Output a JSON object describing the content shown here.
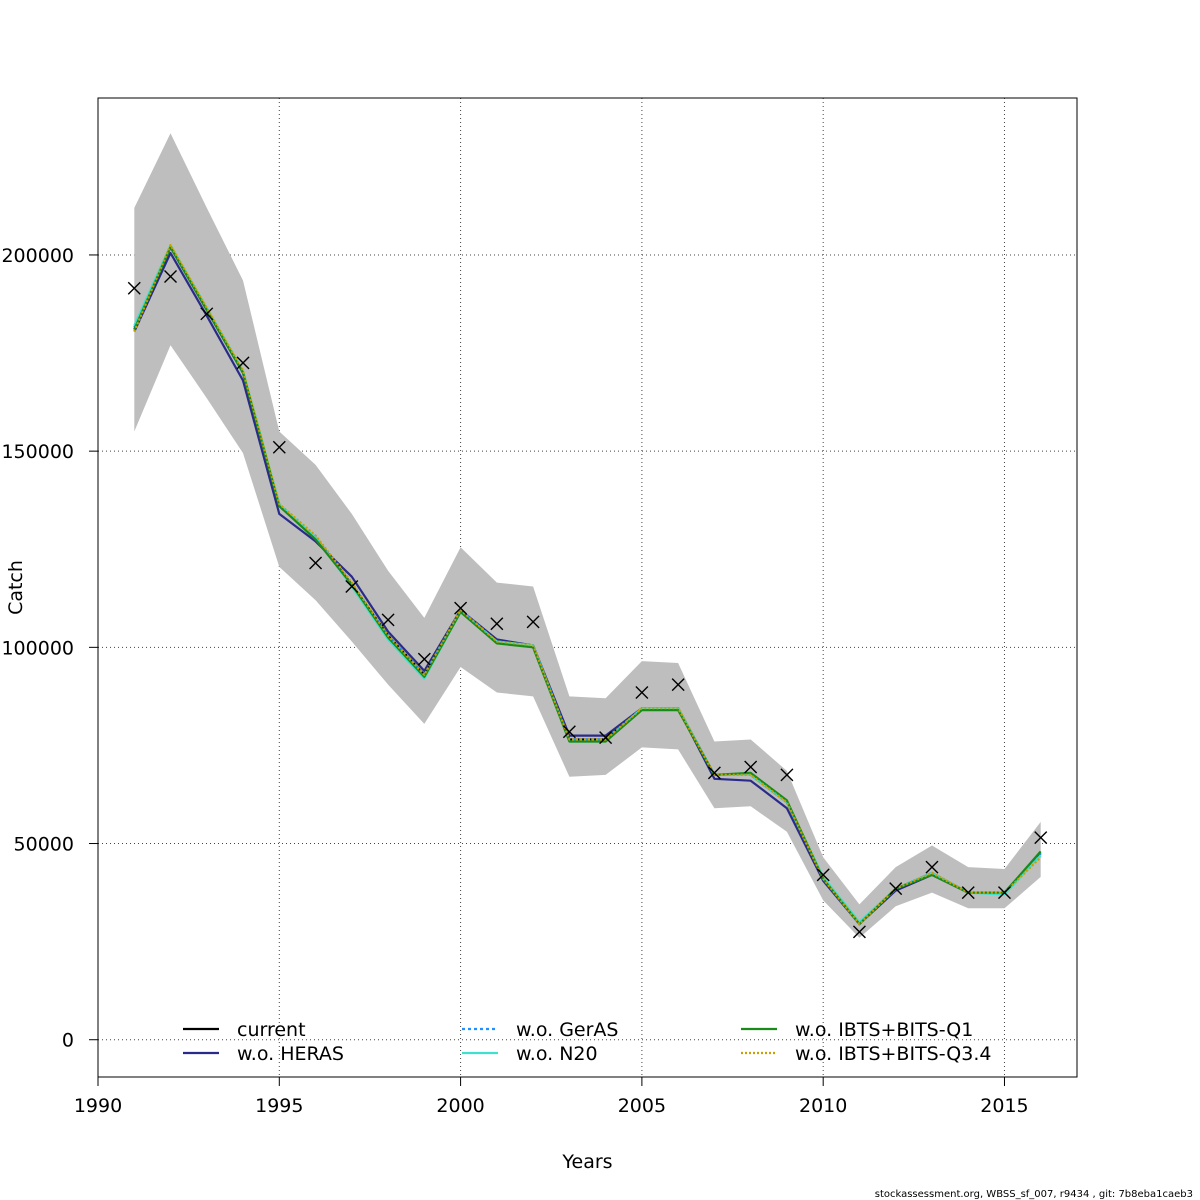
{
  "chart_data": {
    "type": "line",
    "xlabel": "Years",
    "ylabel": "Catch",
    "xlim": [
      1990,
      2017
    ],
    "ylim": [
      -9500,
      240000
    ],
    "x_ticks": [
      1990,
      1995,
      2000,
      2005,
      2010,
      2015
    ],
    "y_ticks": [
      0,
      50000,
      100000,
      150000,
      200000
    ],
    "y_tick_labels": [
      "0",
      "50000",
      "100000",
      "150000",
      "200000"
    ],
    "grid": true,
    "legend_position": "bottom",
    "x": [
      1991,
      1992,
      1993,
      1994,
      1995,
      1996,
      1997,
      1998,
      1999,
      2000,
      2001,
      2002,
      2003,
      2004,
      2005,
      2006,
      2007,
      2008,
      2009,
      2010,
      2011,
      2012,
      2013,
      2014,
      2015,
      2016
    ],
    "confidence_band": {
      "color": "#bebebe",
      "upper": [
        212000,
        231000,
        212000,
        193500,
        155000,
        146500,
        134000,
        119500,
        107500,
        125500,
        116500,
        115500,
        87500,
        87000,
        96500,
        96000,
        76000,
        76500,
        68500,
        46500,
        34500,
        44000,
        49500,
        44000,
        43500,
        55500
      ],
      "lower": [
        155000,
        177000,
        163500,
        149500,
        120500,
        112000,
        101500,
        90500,
        80500,
        95000,
        88500,
        87500,
        67000,
        67500,
        74500,
        74000,
        59000,
        59500,
        53000,
        35500,
        26000,
        34000,
        37500,
        33500,
        33500,
        41500
      ]
    },
    "series": [
      {
        "name": "current",
        "color": "#000000",
        "dash": "",
        "values": [
          181000,
          202000,
          186000,
          170000,
          136000,
          128000,
          116000,
          103000,
          93000,
          109500,
          101500,
          100500,
          76500,
          76500,
          84500,
          84500,
          67500,
          67500,
          60500,
          41000,
          29500,
          38500,
          42500,
          37500,
          37500,
          47500
        ]
      },
      {
        "name": "w.o. HERAS",
        "color": "#2a2a8a",
        "dash": "",
        "values": [
          180500,
          200500,
          184500,
          168000,
          134000,
          127000,
          118000,
          104000,
          94000,
          109500,
          102000,
          100500,
          77500,
          77500,
          84500,
          84500,
          66500,
          66000,
          59000,
          40500,
          29500,
          38000,
          42000,
          37500,
          37500,
          47500
        ]
      },
      {
        "name": "w.o. GerAS",
        "color": "#1e90ff",
        "dash": "3,3",
        "values": [
          181500,
          202000,
          186000,
          170000,
          136000,
          128000,
          116000,
          103000,
          93000,
          109500,
          101500,
          100500,
          76500,
          76500,
          84500,
          84500,
          67500,
          67500,
          60500,
          41000,
          29500,
          38500,
          42500,
          37500,
          37500,
          47500
        ]
      },
      {
        "name": "w.o. N20",
        "color": "#40e0d0",
        "dash": "",
        "values": [
          182000,
          202500,
          186500,
          170500,
          136500,
          128000,
          115500,
          102000,
          92000,
          109000,
          101500,
          100500,
          76000,
          76000,
          84500,
          84500,
          67500,
          67500,
          60500,
          41500,
          30000,
          38500,
          42500,
          37500,
          37000,
          47000
        ]
      },
      {
        "name": "w.o. IBTS+BITS-Q1",
        "color": "#1a8a1a",
        "dash": "",
        "values": [
          181000,
          202000,
          186000,
          170000,
          136000,
          127500,
          116000,
          102500,
          92500,
          109000,
          101000,
          100000,
          76000,
          76000,
          84000,
          84000,
          67500,
          68000,
          61000,
          41000,
          29500,
          38500,
          42000,
          37500,
          37500,
          48000
        ]
      },
      {
        "name": "w.o. IBTS+BITS-Q3.4",
        "color": "#c8a000",
        "dash": "2,2",
        "values": [
          180500,
          202500,
          186500,
          170500,
          136500,
          128500,
          116500,
          103000,
          93000,
          109500,
          101500,
          100500,
          76500,
          76500,
          84500,
          84500,
          67500,
          67500,
          60500,
          41000,
          29500,
          38500,
          42500,
          37500,
          37500,
          46500
        ]
      }
    ],
    "observations": {
      "marker": "x",
      "values": [
        191500,
        194500,
        185000,
        172500,
        151000,
        121500,
        115500,
        107000,
        97000,
        110000,
        106000,
        106500,
        78500,
        77000,
        88500,
        90500,
        68000,
        69500,
        67500,
        42000,
        27500,
        38500,
        44000,
        37500,
        37500,
        51500
      ]
    }
  },
  "footer": {
    "note": "stockassessment.org, WBSS_sf_007, r9434 , git: 7b8eba1caeb3"
  }
}
